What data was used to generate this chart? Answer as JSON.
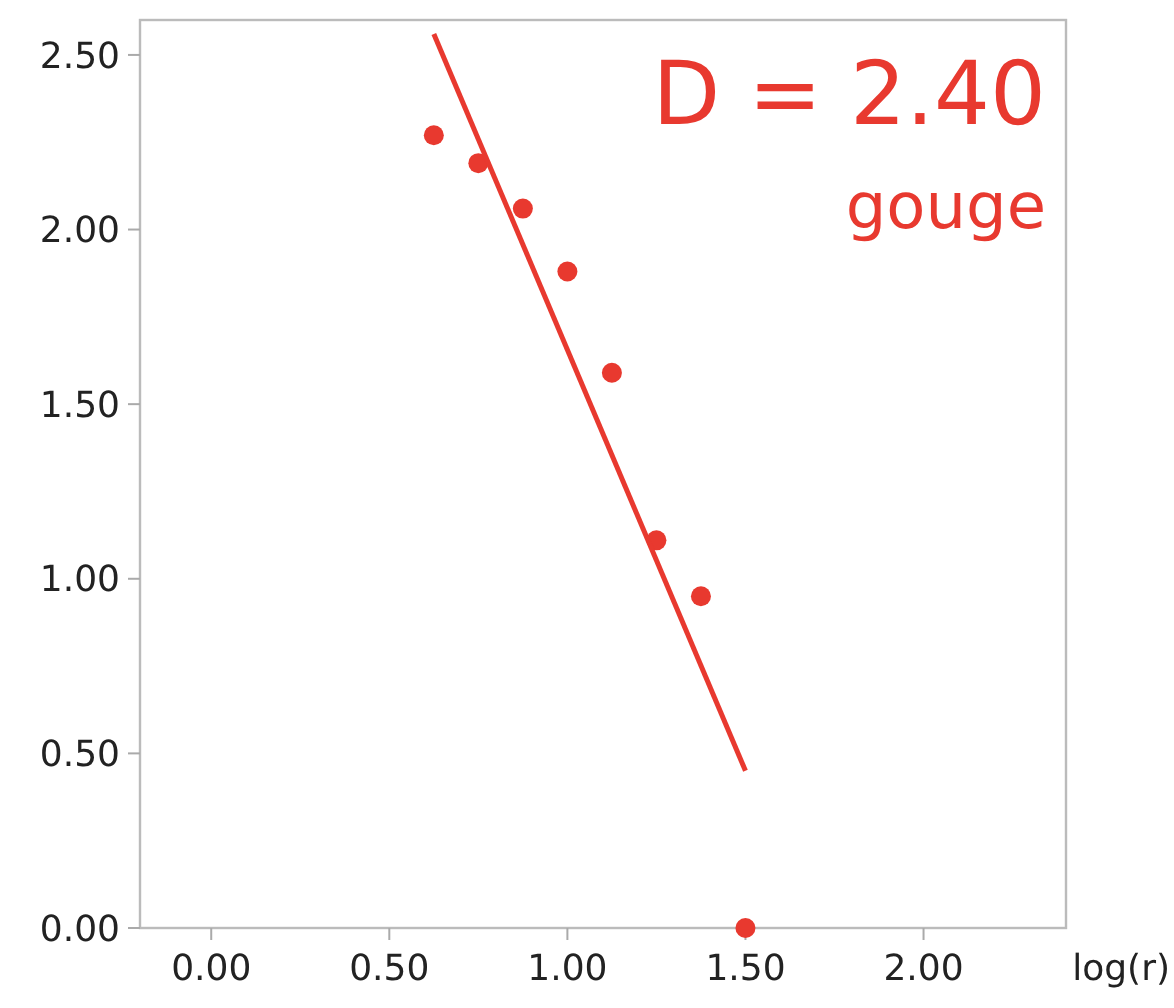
{
  "chart_data": {
    "type": "scatter",
    "xlabel": "log(r)",
    "annotations": [
      "D = 2.40",
      "gouge"
    ],
    "xlim": [
      -0.2,
      2.4
    ],
    "ylim": [
      0,
      2.6
    ],
    "xticks": [
      {
        "value": 0,
        "label": "0.00"
      },
      {
        "value": 0.5,
        "label": "0.50"
      },
      {
        "value": 1,
        "label": "1.00"
      },
      {
        "value": 1.5,
        "label": "1.50"
      },
      {
        "value": 2,
        "label": "2.00"
      }
    ],
    "yticks": [
      {
        "value": 0,
        "label": "0.00"
      },
      {
        "value": 0.5,
        "label": "0.50"
      },
      {
        "value": 1,
        "label": "1.00"
      },
      {
        "value": 1.5,
        "label": "1.50"
      },
      {
        "value": 2,
        "label": "2.00"
      },
      {
        "value": 2.5,
        "label": "2.50"
      }
    ],
    "grid": false,
    "series": [
      {
        "color": "#e8392f",
        "marker": "circle",
        "x": [
          0.625,
          0.75,
          0.875,
          1.0,
          1.125,
          1.25,
          1.375,
          1.5
        ],
        "values": [
          2.27,
          2.19,
          2.06,
          1.88,
          1.59,
          1.11,
          0.95,
          0
        ]
      },
      {
        "type": "line",
        "color": "#e8392f",
        "x": [
          0.625,
          1.5
        ],
        "values": [
          2.56,
          0.45
        ],
        "line_style": "solid",
        "marker": "none"
      }
    ]
  }
}
